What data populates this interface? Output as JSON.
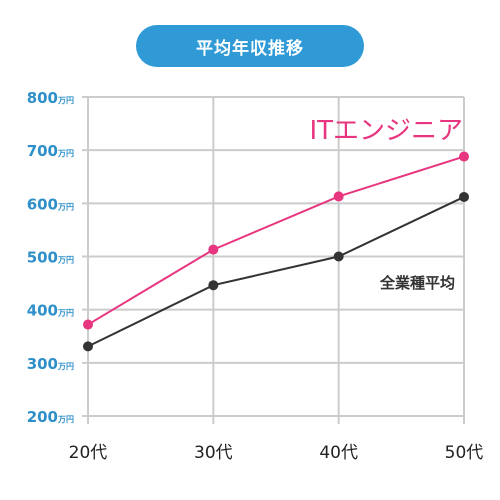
{
  "chart_data": {
    "type": "line",
    "title": "平均年収推移",
    "categories": [
      "20代",
      "30代",
      "40代",
      "50代"
    ],
    "ylim": [
      200,
      800
    ],
    "yticks": [
      200,
      300,
      400,
      500,
      600,
      700,
      800
    ],
    "y_unit": "万円",
    "grid": true,
    "series": [
      {
        "name": "ITエンジニア",
        "color": "#e8357f",
        "values": [
          372,
          513,
          613,
          688
        ]
      },
      {
        "name": "全業種平均",
        "color": "#333333",
        "values": [
          331,
          446,
          500,
          612
        ]
      }
    ]
  },
  "colors": {
    "title_bg": "#2f9ad6",
    "grid": "#cccccc",
    "ytick": "#2f8fc9",
    "xtick": "#222222"
  }
}
